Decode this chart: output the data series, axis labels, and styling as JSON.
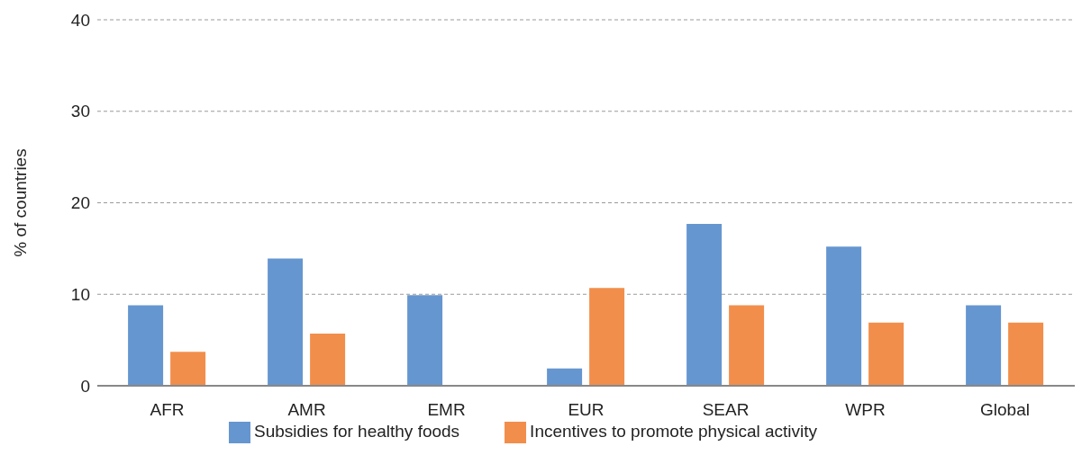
{
  "chart_data": {
    "type": "bar",
    "ylabel": "% of countries",
    "categories": [
      "AFR",
      "AMR",
      "EMR",
      "EUR",
      "SEAR",
      "WPR",
      "Global"
    ],
    "series": [
      {
        "name": "Subsidies for healthy foods",
        "color": "#6596d0",
        "values": [
          8.8,
          13.9,
          9.9,
          1.9,
          17.7,
          15.2,
          8.8
        ]
      },
      {
        "name": "Incentives to promote physical activity",
        "color": "#f28e4b",
        "values": [
          3.7,
          5.7,
          0,
          10.7,
          8.8,
          6.9,
          6.9
        ]
      }
    ],
    "ylim": [
      0,
      40
    ],
    "yticks": [
      0,
      10,
      20,
      30,
      40
    ],
    "grid": "y",
    "legend": "bottom"
  }
}
